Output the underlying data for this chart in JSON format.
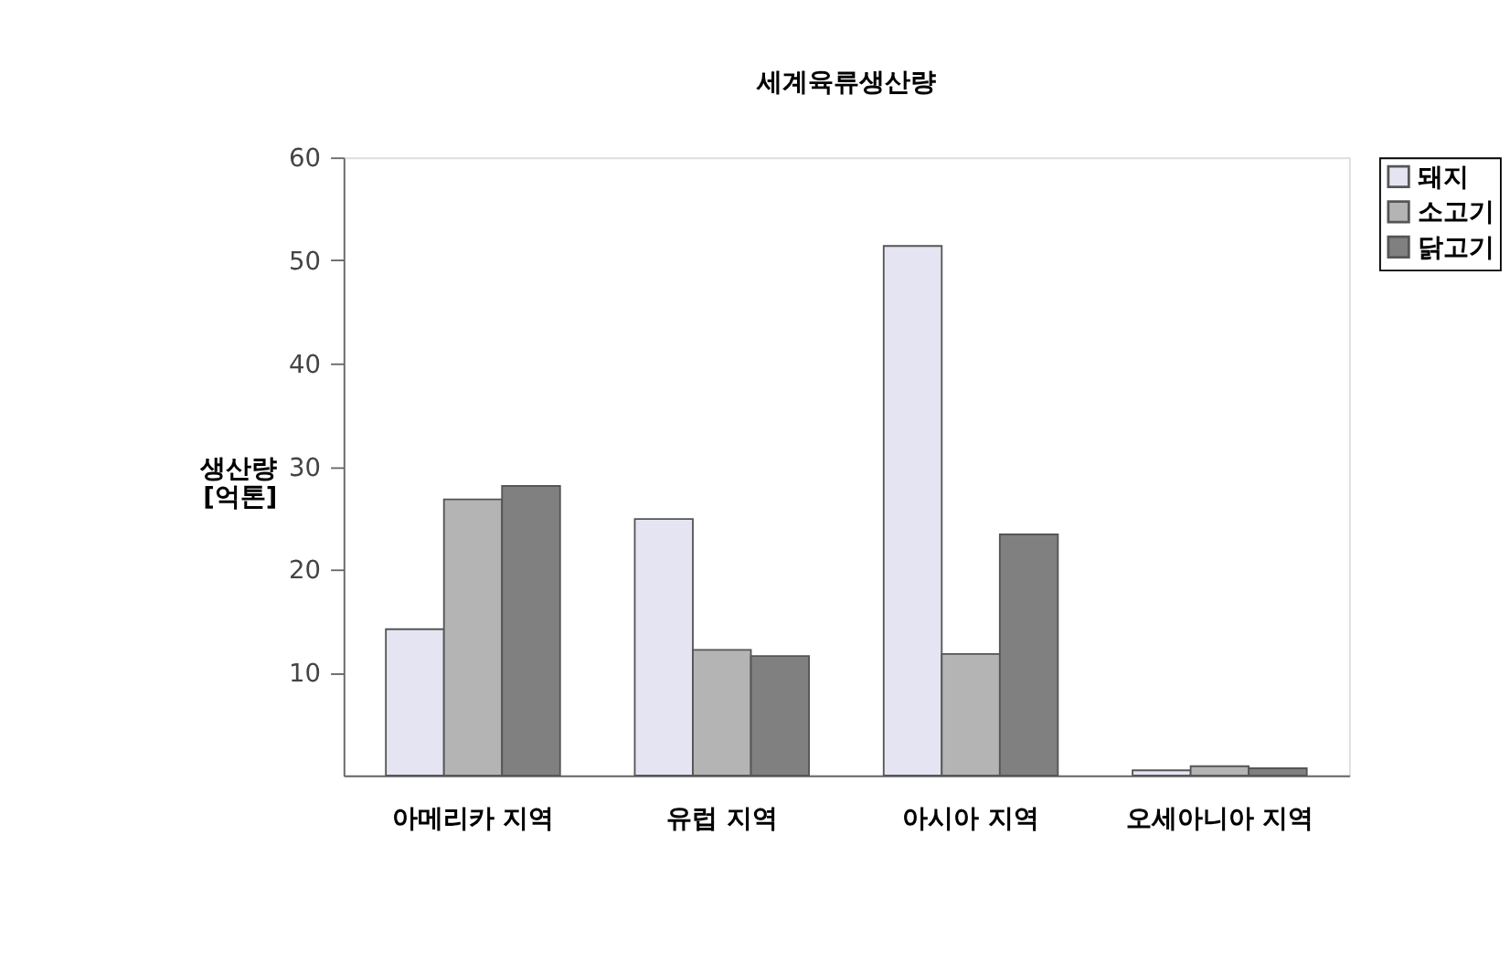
{
  "chart_data": {
    "type": "bar",
    "title": "세계육류생산량",
    "ylabel": "생산량 [억톤]",
    "categories": [
      "아메리카 지역",
      "유럽 지역",
      "아시아 지역",
      "오세아니아 지역"
    ],
    "series": [
      {
        "name": "돼지",
        "color": "#e4e4f2",
        "values": [
          14.2,
          24.9,
          51.4,
          0.5
        ]
      },
      {
        "name": "소고기",
        "color": "#b4b4b4",
        "values": [
          26.8,
          12.2,
          11.8,
          0.9
        ]
      },
      {
        "name": "닭고기",
        "color": "#808080",
        "values": [
          28.1,
          11.6,
          23.4,
          0.7
        ]
      }
    ],
    "ylim": [
      0,
      60
    ],
    "yticks": [
      10,
      20,
      30,
      40,
      50,
      60
    ],
    "grid": false,
    "legend": "right"
  }
}
